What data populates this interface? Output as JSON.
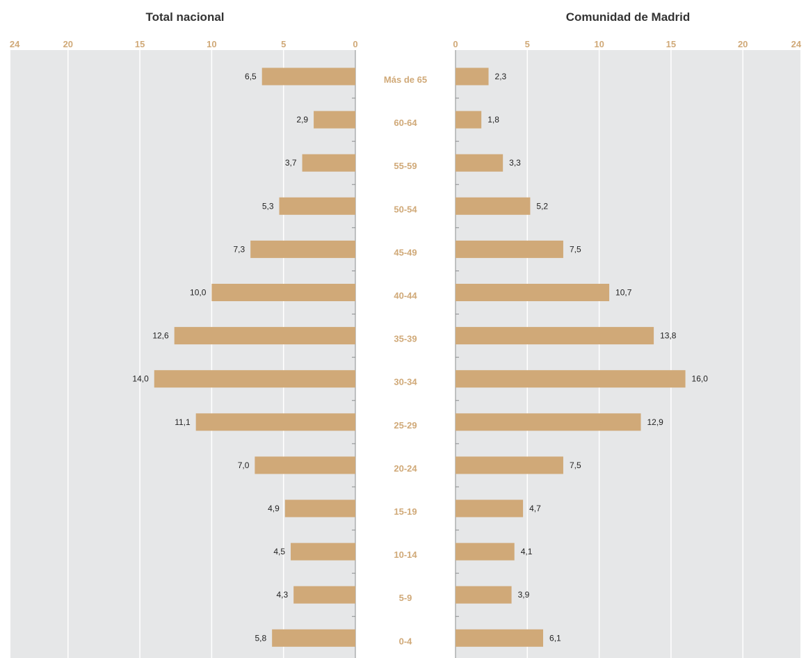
{
  "colors": {
    "bar": "#d0a978",
    "label_accent": "#d0a978",
    "panel_bg": "#e6e7e8",
    "grid": "#ffffff",
    "axis": "#8a8c8e",
    "title": "#333333"
  },
  "chart_data": [
    {
      "type": "bar",
      "orientation": "horizontal",
      "direction": "right-to-left",
      "title": "Total nacional",
      "xlim": [
        0,
        24
      ],
      "xticks": [
        0,
        5,
        10,
        15,
        20,
        24
      ],
      "xtick_labels": [
        "0",
        "5",
        "10",
        "15",
        "20",
        "24"
      ],
      "categories": [
        "Más de 65",
        "60-64",
        "55-59",
        "50-54",
        "45-49",
        "40-44",
        "35-39",
        "30-34",
        "25-29",
        "20-24",
        "15-19",
        "10-14",
        "5-9",
        "0-4"
      ],
      "values": [
        6.5,
        2.9,
        3.7,
        5.3,
        7.3,
        10.0,
        12.6,
        14.0,
        11.1,
        7.0,
        4.9,
        4.5,
        4.3,
        5.8
      ],
      "value_labels": [
        "6,5",
        "2,9",
        "3,7",
        "5,3",
        "7,3",
        "10,0",
        "12,6",
        "14,0",
        "11,1",
        "7,0",
        "4,9",
        "4,5",
        "4,3",
        "5,8"
      ],
      "grid": true
    },
    {
      "type": "bar",
      "orientation": "horizontal",
      "direction": "left-to-right",
      "title": "Comunidad de Madrid",
      "xlim": [
        0,
        24
      ],
      "xticks": [
        0,
        5,
        10,
        15,
        20,
        24
      ],
      "xtick_labels": [
        "0",
        "5",
        "10",
        "15",
        "20",
        "24"
      ],
      "categories": [
        "Más de 65",
        "60-64",
        "55-59",
        "50-54",
        "45-49",
        "40-44",
        "35-39",
        "30-34",
        "25-29",
        "20-24",
        "15-19",
        "10-14",
        "5-9",
        "0-4"
      ],
      "values": [
        2.3,
        1.8,
        3.3,
        5.2,
        7.5,
        10.7,
        13.8,
        16.0,
        12.9,
        7.5,
        4.7,
        4.1,
        3.9,
        6.1
      ],
      "value_labels": [
        "2,3",
        "1,8",
        "3,3",
        "5,2",
        "7,5",
        "10,7",
        "13,8",
        "16,0",
        "12,9",
        "7,5",
        "4,7",
        "4,1",
        "3,9",
        "6,1"
      ],
      "grid": true
    }
  ]
}
